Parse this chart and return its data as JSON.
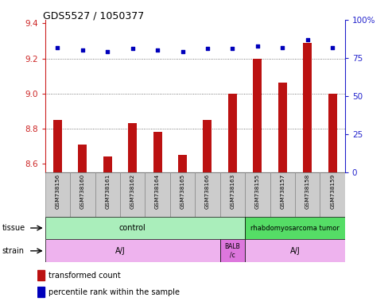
{
  "title": "GDS5527 / 1050377",
  "samples": [
    "GSM738156",
    "GSM738160",
    "GSM738161",
    "GSM738162",
    "GSM738164",
    "GSM738165",
    "GSM738166",
    "GSM738163",
    "GSM738155",
    "GSM738157",
    "GSM738158",
    "GSM738159"
  ],
  "bar_values": [
    8.85,
    8.71,
    8.64,
    8.83,
    8.78,
    8.65,
    8.85,
    9.0,
    9.2,
    9.06,
    9.29,
    9.0
  ],
  "dot_values": [
    82,
    80,
    79,
    81,
    80,
    79,
    81,
    81,
    83,
    82,
    87,
    82
  ],
  "bar_color": "#bb1111",
  "dot_color": "#0000bb",
  "ylim_left": [
    8.55,
    9.42
  ],
  "ylim_right": [
    0,
    100
  ],
  "yticks_left": [
    8.6,
    8.8,
    9.0,
    9.2,
    9.4
  ],
  "yticks_right": [
    0,
    25,
    50,
    75,
    100
  ],
  "grid_values": [
    8.8,
    9.0,
    9.2
  ],
  "tissue_control_color": "#aaeebb",
  "tissue_tumor_color": "#55dd66",
  "strain_aj_color": "#eeb3ee",
  "strain_balb_color": "#dd77dd",
  "legend_bar_color": "#bb1111",
  "legend_dot_color": "#0000bb",
  "tick_label_color": "#cc2222",
  "right_tick_color": "#2222cc"
}
